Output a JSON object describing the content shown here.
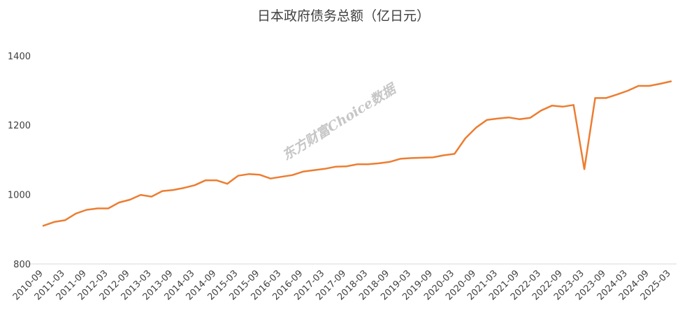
{
  "chart_data": {
    "type": "line",
    "title": "日本政府债务总额（亿日元）",
    "xlabel": "",
    "ylabel": "",
    "ylim": [
      800,
      1480
    ],
    "yticks": [
      800,
      1000,
      1200,
      1400
    ],
    "grid": false,
    "legend": "none",
    "line_color": "#ed7d31",
    "axis_color": "#d9d9d9",
    "x_tick_labels": [
      "2010-09",
      "2011-03",
      "2011-09",
      "2012-03",
      "2012-09",
      "2013-03",
      "2013-09",
      "2014-03",
      "2014-09",
      "2015-03",
      "2015-09",
      "2016-03",
      "2016-09",
      "2017-03",
      "2017-09",
      "2018-03",
      "2018-09",
      "2019-03",
      "2019-09",
      "2020-03",
      "2020-09",
      "2021-03",
      "2021-09",
      "2022-03",
      "2022-09",
      "2023-03",
      "2023-09",
      "2024-03",
      "2024-09",
      "2025-03"
    ],
    "series": [
      {
        "values": [
          910,
          921,
          926,
          945,
          956,
          960,
          960,
          977,
          985,
          999,
          994,
          1010,
          1013,
          1019,
          1027,
          1041,
          1041,
          1031,
          1054,
          1059,
          1057,
          1046,
          1051,
          1056,
          1066,
          1070,
          1074,
          1080,
          1081,
          1087,
          1087,
          1090,
          1094,
          1103,
          1105,
          1106,
          1107,
          1113,
          1117,
          1162,
          1193,
          1215,
          1219,
          1222,
          1217,
          1221,
          1242,
          1256,
          1253,
          1258,
          1073,
          1278,
          1278,
          1288,
          1299,
          1313,
          1313,
          1319,
          1326
        ]
      }
    ]
  },
  "watermark": "东方财富Choice数据"
}
